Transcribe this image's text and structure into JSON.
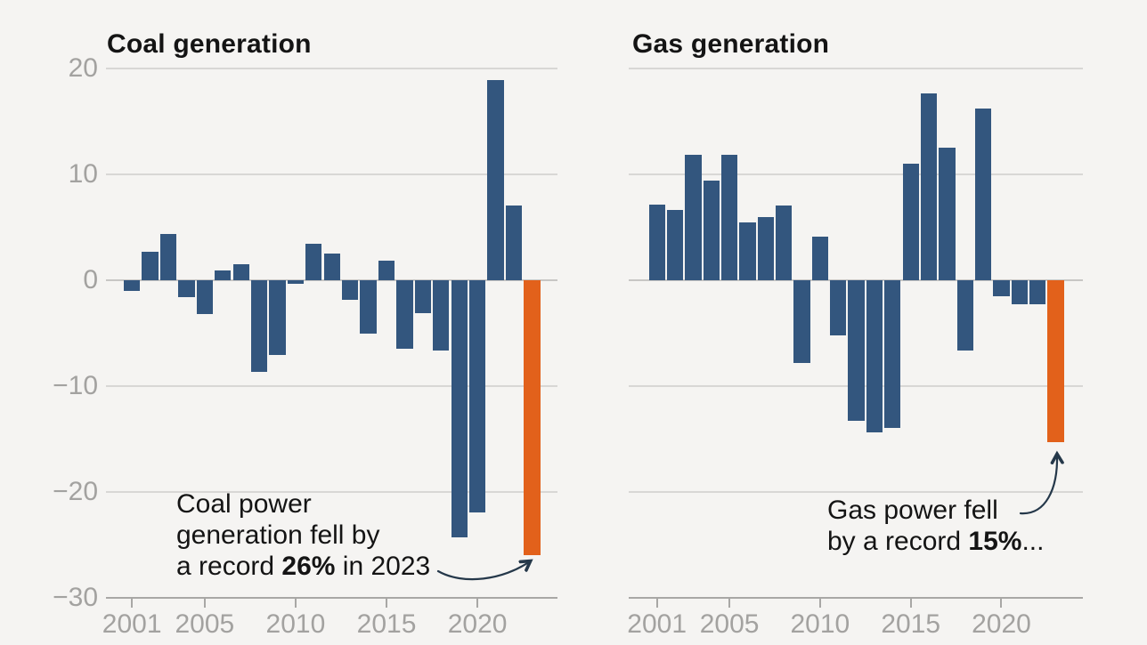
{
  "style": {
    "background": "#f5f4f2",
    "bar_color": "#33567e",
    "highlight_color": "#e2611b",
    "grid_color": "#d8d7d5",
    "zero_line_color": "#c7c6c4",
    "axis_color": "#a8a7a5",
    "axis_label_color": "#a3a2a0",
    "text_color": "#141414",
    "arrow_color": "#25384a"
  },
  "chart_data": [
    {
      "type": "bar",
      "title": "Coal generation",
      "x": [
        2001,
        2002,
        2003,
        2004,
        2005,
        2006,
        2007,
        2008,
        2009,
        2010,
        2011,
        2012,
        2013,
        2014,
        2015,
        2016,
        2017,
        2018,
        2019,
        2020,
        2021,
        2022,
        2023
      ],
      "values": [
        -1.0,
        2.7,
        4.3,
        -1.6,
        -3.2,
        0.9,
        1.5,
        -8.7,
        -7.1,
        -0.4,
        3.4,
        2.5,
        -1.9,
        -5.1,
        1.8,
        -6.5,
        -3.1,
        -6.7,
        -24.3,
        -21.9,
        18.9,
        7.0,
        -26.0
      ],
      "highlight_year": 2023,
      "ylim": [
        -30,
        20
      ],
      "gridline_values": [
        20,
        10,
        0,
        -10,
        -20
      ],
      "ytick_values": [
        20,
        10,
        0,
        -10,
        -20,
        -30
      ],
      "ytick_labels": [
        "20",
        "10",
        "0",
        "−10",
        "−20",
        "−30"
      ],
      "xtick_years": [
        2001,
        2005,
        2010,
        2015,
        2020
      ],
      "xtick_labels": [
        "2001",
        "2005",
        "2010",
        "2015",
        "2020"
      ],
      "legend": "none",
      "grid": "on",
      "annotation": {
        "line1": "Coal power",
        "line2": "generation fell by",
        "line3_pre": "a record ",
        "line3_bold": "26%",
        "line3_post": " in 2023"
      }
    },
    {
      "type": "bar",
      "title": "Gas generation",
      "x": [
        2001,
        2002,
        2003,
        2004,
        2005,
        2006,
        2007,
        2008,
        2009,
        2010,
        2011,
        2012,
        2013,
        2014,
        2015,
        2016,
        2017,
        2018,
        2019,
        2020,
        2021,
        2022,
        2023
      ],
      "values": [
        7.1,
        6.6,
        11.8,
        9.4,
        11.8,
        5.4,
        5.9,
        7.0,
        -7.8,
        4.1,
        -5.2,
        -13.3,
        -14.4,
        -14.0,
        11.0,
        17.6,
        12.5,
        -6.7,
        16.2,
        -1.5,
        -2.3,
        -2.3,
        -15.3
      ],
      "highlight_year": 2023,
      "ylim": [
        -30,
        20
      ],
      "gridline_values": [
        20,
        10,
        0,
        -10,
        -20
      ],
      "ytick_values": [
        20,
        10,
        0,
        -10,
        -20,
        -30
      ],
      "ytick_labels": [],
      "xtick_years": [
        2001,
        2005,
        2010,
        2015,
        2020
      ],
      "xtick_labels": [
        "2001",
        "2005",
        "2010",
        "2015",
        "2020"
      ],
      "legend": "none",
      "grid": "on",
      "annotation": {
        "line1": "Gas power fell",
        "line2_pre": "by a record ",
        "line2_bold": "15%",
        "line2_post": "..."
      }
    }
  ]
}
